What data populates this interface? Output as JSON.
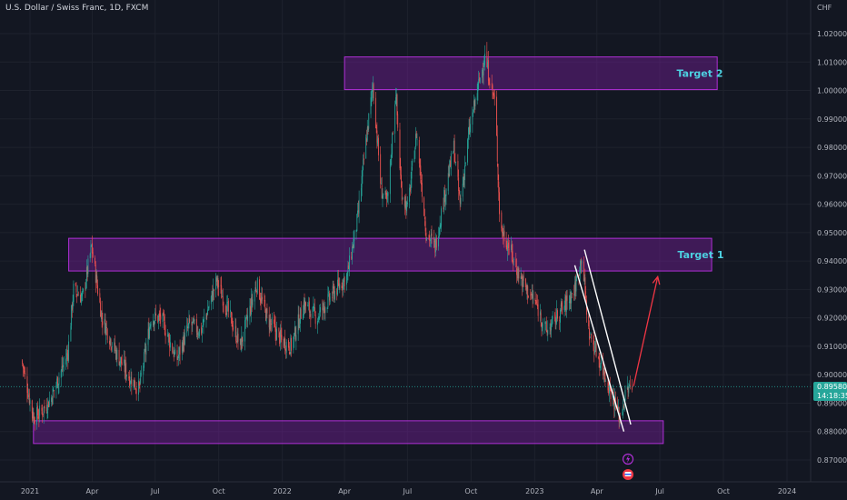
{
  "header": {
    "title": "U.S. Dollar / Swiss Franc, 1D, FXCM",
    "currency": "CHF"
  },
  "price_label": {
    "value": "0.89580",
    "countdown": "14:18:35"
  },
  "colors": {
    "background": "#131722",
    "bull": "#26a69a",
    "bear": "#ef5350",
    "zone_fill": "#7b1fa2",
    "zone_border": "#b02fd6",
    "target_text": "#4dd0e1",
    "arrow": "#f23645",
    "channel": "#ffffff"
  },
  "chart_data": {
    "type": "candlestick",
    "y_axis": {
      "range": [
        0.8675,
        1.0245
      ],
      "ticks": [
        "1.02000",
        "1.01000",
        "1.00000",
        "0.99000",
        "0.98000",
        "0.97000",
        "0.96000",
        "0.95000",
        "0.94000",
        "0.93000",
        "0.92000",
        "0.91000",
        "0.90000",
        "0.89000",
        "0.88000",
        "0.87000"
      ]
    },
    "x_axis": {
      "range": [
        "2020-12-20",
        "2024-01-28"
      ],
      "ticks": [
        {
          "label": "2021",
          "date": "2021-01-01"
        },
        {
          "label": "Apr",
          "date": "2021-04-01"
        },
        {
          "label": "Jul",
          "date": "2021-07-01"
        },
        {
          "label": "Oct",
          "date": "2021-10-01"
        },
        {
          "label": "2022",
          "date": "2022-01-01"
        },
        {
          "label": "Apr",
          "date": "2022-04-01"
        },
        {
          "label": "Jul",
          "date": "2022-07-01"
        },
        {
          "label": "Oct",
          "date": "2022-10-01"
        },
        {
          "label": "2023",
          "date": "2023-01-01"
        },
        {
          "label": "Apr",
          "date": "2023-04-01"
        },
        {
          "label": "Jul",
          "date": "2023-07-01"
        },
        {
          "label": "Oct",
          "date": "2023-10-01"
        },
        {
          "label": "2024",
          "date": "2024-01-01"
        }
      ]
    },
    "price_path": [
      [
        "2020-12-20",
        0.905
      ],
      [
        "2021-01-06",
        0.885
      ],
      [
        "2021-01-18",
        0.887
      ],
      [
        "2021-02-01",
        0.892
      ],
      [
        "2021-02-25",
        0.908
      ],
      [
        "2021-03-05",
        0.93
      ],
      [
        "2021-03-18",
        0.927
      ],
      [
        "2021-03-31",
        0.945
      ],
      [
        "2021-04-15",
        0.92
      ],
      [
        "2021-05-05",
        0.908
      ],
      [
        "2021-05-25",
        0.899
      ],
      [
        "2021-06-08",
        0.895
      ],
      [
        "2021-06-25",
        0.92
      ],
      [
        "2021-07-10",
        0.92
      ],
      [
        "2021-08-01",
        0.905
      ],
      [
        "2021-08-20",
        0.918
      ],
      [
        "2021-09-05",
        0.915
      ],
      [
        "2021-09-28",
        0.933
      ],
      [
        "2021-10-15",
        0.922
      ],
      [
        "2021-11-01",
        0.91
      ],
      [
        "2021-11-25",
        0.932
      ],
      [
        "2021-12-10",
        0.92
      ],
      [
        "2021-12-31",
        0.912
      ],
      [
        "2022-01-14",
        0.91
      ],
      [
        "2022-02-01",
        0.925
      ],
      [
        "2022-02-20",
        0.92
      ],
      [
        "2022-03-05",
        0.925
      ],
      [
        "2022-03-20",
        0.93
      ],
      [
        "2022-04-05",
        0.935
      ],
      [
        "2022-04-20",
        0.955
      ],
      [
        "2022-05-01",
        0.98
      ],
      [
        "2022-05-12",
        1.002
      ],
      [
        "2022-05-24",
        0.965
      ],
      [
        "2022-06-02",
        0.96
      ],
      [
        "2022-06-14",
        1.0
      ],
      [
        "2022-06-22",
        0.965
      ],
      [
        "2022-07-01",
        0.958
      ],
      [
        "2022-07-14",
        0.985
      ],
      [
        "2022-07-28",
        0.95
      ],
      [
        "2022-08-10",
        0.945
      ],
      [
        "2022-08-25",
        0.965
      ],
      [
        "2022-09-06",
        0.98
      ],
      [
        "2022-09-15",
        0.96
      ],
      [
        "2022-09-28",
        0.985
      ],
      [
        "2022-10-10",
        1.0
      ],
      [
        "2022-10-21",
        1.012
      ],
      [
        "2022-11-05",
        0.995
      ],
      [
        "2022-11-12",
        0.952
      ],
      [
        "2022-11-25",
        0.945
      ],
      [
        "2022-12-06",
        0.937
      ],
      [
        "2022-12-20",
        0.93
      ],
      [
        "2023-01-03",
        0.925
      ],
      [
        "2023-01-18",
        0.915
      ],
      [
        "2023-02-01",
        0.92
      ],
      [
        "2023-02-15",
        0.925
      ],
      [
        "2023-02-28",
        0.93
      ],
      [
        "2023-03-10",
        0.942
      ],
      [
        "2023-03-20",
        0.915
      ],
      [
        "2023-04-05",
        0.905
      ],
      [
        "2023-04-20",
        0.895
      ],
      [
        "2023-05-04",
        0.885
      ],
      [
        "2023-05-15",
        0.895
      ],
      [
        "2023-05-22",
        0.895
      ]
    ],
    "last_price": 0.8958,
    "zones": [
      {
        "id": "target-2-zone",
        "from": "2022-04-01",
        "to": "2023-09-22",
        "low": 1.0003,
        "high": 1.0118,
        "label": "Target 2"
      },
      {
        "id": "target-1-zone",
        "from": "2021-02-26",
        "to": "2023-09-14",
        "low": 0.9365,
        "high": 0.948,
        "label": "Target 1"
      },
      {
        "id": "support-zone",
        "from": "2021-01-06",
        "to": "2023-07-06",
        "low": 0.8758,
        "high": 0.8838,
        "label": ""
      }
    ],
    "channel_lines": [
      {
        "from": [
          "2023-02-28",
          0.9385
        ],
        "to": [
          "2023-05-10",
          0.88
        ]
      },
      {
        "from": [
          "2023-03-14",
          0.944
        ],
        "to": [
          "2023-05-20",
          0.8825
        ]
      }
    ],
    "projection_arrow": {
      "from": [
        "2023-05-24",
        0.896
      ],
      "to": [
        "2023-06-28",
        0.9345
      ]
    },
    "current_price_line": 0.8958
  }
}
